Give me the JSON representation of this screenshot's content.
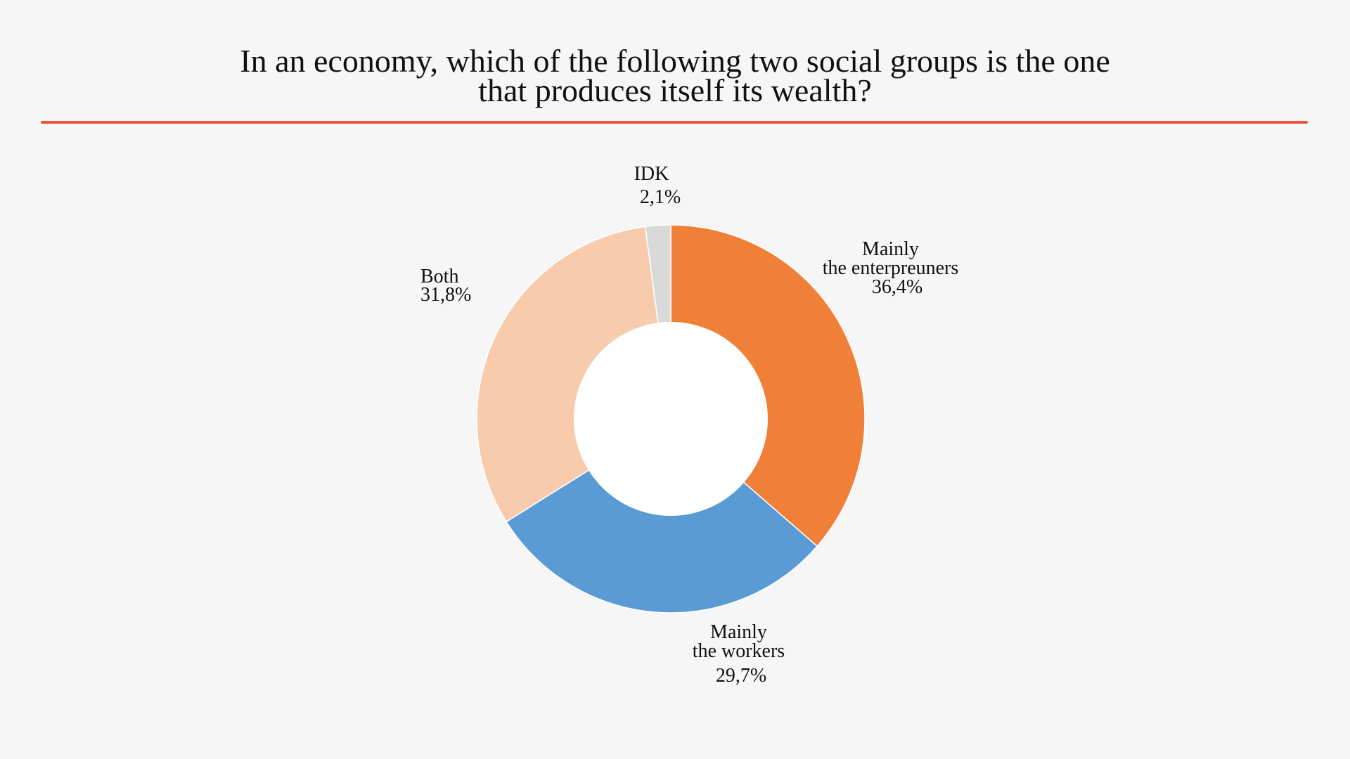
{
  "chart_data": {
    "type": "pie",
    "variant": "donut",
    "title_lines": [
      "In an economy, which of the following two social groups is the one",
      "that produces itself its wealth?"
    ],
    "unit": "%",
    "slices": [
      {
        "label_lines": [
          "Mainly",
          "the enterpreuners"
        ],
        "value": 36.4,
        "value_text": "36,4%",
        "color": "#f08037"
      },
      {
        "label_lines": [
          "Mainly",
          "the workers"
        ],
        "value": 29.7,
        "value_text": "29,7%",
        "color": "#5b9bd5"
      },
      {
        "label_lines": [
          "Both"
        ],
        "value": 31.8,
        "value_text": "31,8%",
        "color": "#f8cbad"
      },
      {
        "label_lines": [
          "IDK"
        ],
        "value": 2.1,
        "value_text": "2,1%",
        "color": "#d9d9d9"
      }
    ],
    "start_angle_deg": 0,
    "direction": "clockwise",
    "legend": "none"
  },
  "style": {
    "background": "#f6f6f6",
    "rule_color": "#e8533a",
    "separator_color": "#ffffff",
    "hole_color": "#ffffff"
  }
}
